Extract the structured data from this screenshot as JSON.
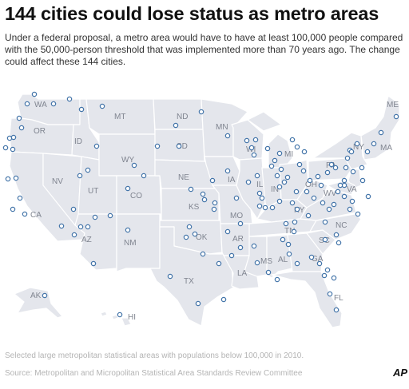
{
  "headline": "144 cities could lose status as metro areas",
  "dek": "Under a federal proposal, a metro area would have to have at least 100,000 people compared with the 50,000-person threshold that was implemented more than 70 years ago. The change could affect these 144 cities.",
  "note": "Selected large metropolitan statistical areas with populations below 100,000 in 2010.",
  "source": "Source: Metropolitan and Micropolitan Statistical Area Standards Review Committee",
  "credit": "AP",
  "state_labels": {
    "WA": "WA",
    "OR": "OR",
    "CA": "CA",
    "NV": "NV",
    "ID": "ID",
    "MT": "MT",
    "WY": "WY",
    "UT": "UT",
    "AZ": "AZ",
    "NM": "NM",
    "CO": "CO",
    "ND": "ND",
    "SD": "SD",
    "NE": "NE",
    "KS": "KS",
    "OK": "OK",
    "TX": "TX",
    "MN": "MN",
    "IA": "IA",
    "MO": "MO",
    "AR": "AR",
    "LA": "LA",
    "WI": "WI",
    "IL": "IL",
    "MI": "MI",
    "IN": "IN",
    "OH": "OH",
    "KY": "KY",
    "TN": "TN",
    "MS": "MS",
    "AL": "AL",
    "GA": "GA",
    "FL": "FL",
    "SC": "SC",
    "NC": "NC",
    "VA": "VA",
    "WV": "WV",
    "PA": "PA",
    "NY": "NY",
    "ME": "ME",
    "MA": "MA",
    "AK": "AK",
    "HI": "HI"
  },
  "colors": {
    "land": "#e4e6ec",
    "border": "#ffffff",
    "marker_stroke": "#3a6ea5",
    "marker_fill": "#ffffff",
    "label": "#808590"
  },
  "marker_count": 144
}
